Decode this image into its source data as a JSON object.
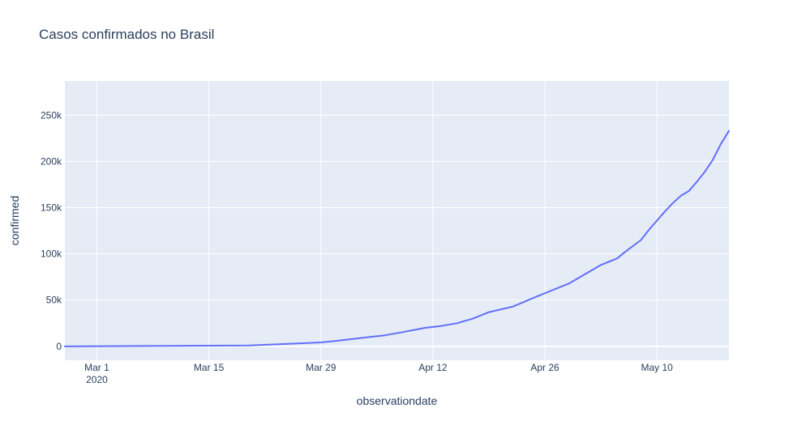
{
  "chart_data": {
    "type": "line",
    "title": "Casos confirmados no Brasil",
    "xlabel": "observationdate",
    "ylabel": "confirmed",
    "x_axis": {
      "type": "date",
      "range": [
        "2020-02-26",
        "2020-05-19"
      ],
      "ticks": [
        {
          "value": "2020-03-01",
          "label": "Mar 1",
          "sublabel": "2020"
        },
        {
          "value": "2020-03-15",
          "label": "Mar 15",
          "sublabel": ""
        },
        {
          "value": "2020-03-29",
          "label": "Mar 29",
          "sublabel": ""
        },
        {
          "value": "2020-04-12",
          "label": "Apr 12",
          "sublabel": ""
        },
        {
          "value": "2020-04-26",
          "label": "Apr 26",
          "sublabel": ""
        },
        {
          "value": "2020-05-10",
          "label": "May 10",
          "sublabel": ""
        }
      ]
    },
    "y_axis": {
      "range": [
        -15000,
        287000
      ],
      "ticks": [
        {
          "value": 0,
          "label": "0"
        },
        {
          "value": 50000,
          "label": "50k"
        },
        {
          "value": 100000,
          "label": "100k"
        },
        {
          "value": 150000,
          "label": "150k"
        },
        {
          "value": 200000,
          "label": "200k"
        },
        {
          "value": 250000,
          "label": "250k"
        }
      ]
    },
    "grid": true,
    "colors": {
      "plot_bg": "#e5ecf6",
      "grid": "#ffffff",
      "line": "#636efa",
      "text": "#2a3f5f"
    },
    "series": [
      {
        "x": [
          "2020-02-26",
          "2020-03-20",
          "2020-03-24",
          "2020-03-29",
          "2020-03-31",
          "2020-04-04",
          "2020-04-06",
          "2020-04-08",
          "2020-04-11",
          "2020-04-13",
          "2020-04-15",
          "2020-04-17",
          "2020-04-19",
          "2020-04-22",
          "2020-04-25",
          "2020-04-27",
          "2020-04-29",
          "2020-05-01",
          "2020-05-03",
          "2020-05-05",
          "2020-05-06",
          "2020-05-08",
          "2020-05-09",
          "2020-05-11",
          "2020-05-12",
          "2020-05-13",
          "2020-05-14",
          "2020-05-15",
          "2020-05-16",
          "2020-05-17",
          "2020-05-18",
          "2020-05-19"
        ],
        "y": [
          1,
          1000,
          2400,
          4300,
          6000,
          10000,
          12000,
          15000,
          20000,
          22000,
          25000,
          30000,
          37000,
          43000,
          54000,
          61000,
          68000,
          78000,
          88000,
          95000,
          102000,
          115000,
          126000,
          146000,
          155000,
          163000,
          168000,
          178000,
          189000,
          202000,
          219000,
          233000
        ]
      }
    ]
  }
}
